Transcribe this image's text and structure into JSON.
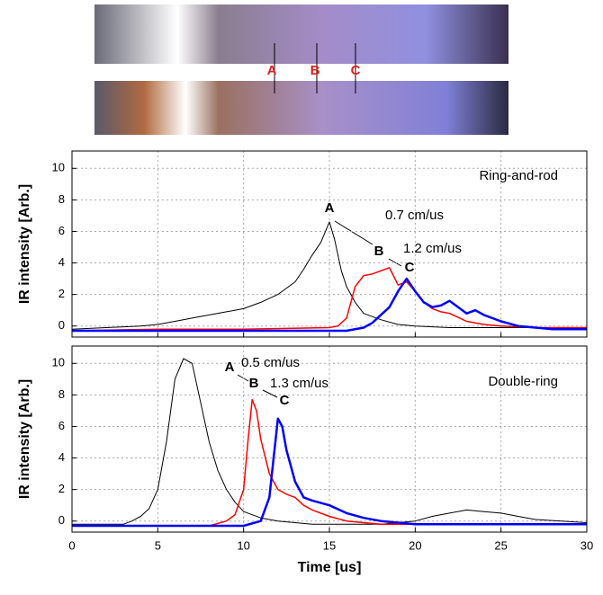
{
  "photos": {
    "labels": [
      "A",
      "B",
      "C"
    ]
  },
  "chart_data": [
    {
      "type": "line",
      "ylabel": "IR intensity [Arb.]",
      "xlim": [
        0,
        30
      ],
      "ylim": [
        -0.7,
        11.1
      ],
      "yticks": [
        0,
        2,
        4,
        6,
        8,
        10
      ],
      "xticks": [
        0,
        5,
        10,
        15,
        20,
        25,
        30
      ],
      "grid": true,
      "annotations": [
        "Ring-and-rod",
        "A",
        "0.7 cm/us",
        "B",
        "1.2 cm/us",
        "C"
      ],
      "series": [
        {
          "color": "#000000",
          "x": [
            0,
            2,
            4,
            5,
            6,
            7,
            8,
            9,
            10,
            11,
            12,
            13,
            13.5,
            14,
            14.5,
            15,
            15.3,
            15.7,
            16,
            16.5,
            17,
            18,
            19,
            20,
            22,
            25,
            28,
            30
          ],
          "values": [
            -0.2,
            -0.1,
            0,
            0.1,
            0.3,
            0.5,
            0.7,
            0.9,
            1.1,
            1.5,
            2,
            2.8,
            3.6,
            4.5,
            5.3,
            6.6,
            5.5,
            3.5,
            2.5,
            1.5,
            0.8,
            0.4,
            0.1,
            0,
            -0.1,
            -0.1,
            -0.1,
            -0.1
          ]
        },
        {
          "color": "#ff0000",
          "x": [
            0,
            5,
            10,
            15,
            15.5,
            16,
            16.5,
            17,
            17.5,
            18,
            18.5,
            19,
            19.5,
            20,
            20.5,
            21,
            21.5,
            22,
            23,
            24,
            25,
            27,
            30
          ],
          "values": [
            -0.3,
            -0.2,
            -0.2,
            -0.1,
            0,
            0.5,
            2.5,
            3.2,
            3.3,
            3.5,
            3.7,
            2.6,
            2.8,
            2.2,
            1.5,
            1.1,
            0.9,
            0.8,
            0.3,
            0.1,
            0,
            -0.1,
            -0.1
          ]
        },
        {
          "color": "#0000ff",
          "x": [
            0,
            5,
            10,
            15,
            16,
            17,
            17.5,
            18,
            18.5,
            19,
            19.5,
            20,
            20.5,
            21,
            21.5,
            22,
            22.5,
            23,
            23.5,
            24,
            25,
            26,
            28,
            30
          ],
          "values": [
            -0.3,
            -0.3,
            -0.3,
            -0.3,
            -0.3,
            -0.1,
            0.2,
            0.7,
            1.2,
            2.2,
            3,
            2.2,
            1.5,
            1.2,
            1.3,
            1.6,
            1.2,
            0.8,
            1,
            0.7,
            0.3,
            0,
            -0.2,
            -0.2
          ]
        }
      ]
    },
    {
      "type": "line",
      "ylabel": "IR intensity [Arb.]",
      "xlabel": "Time [us]",
      "xlim": [
        0,
        30
      ],
      "ylim": [
        -0.7,
        11.1
      ],
      "yticks": [
        0,
        2,
        4,
        6,
        8,
        10
      ],
      "xticks": [
        0,
        5,
        10,
        15,
        20,
        25,
        30
      ],
      "grid": true,
      "annotations": [
        "A",
        "0.5 cm/us",
        "B",
        "1.3 cm/us",
        "C",
        "Double-ring"
      ],
      "series": [
        {
          "color": "#000000",
          "x": [
            0,
            3,
            3.5,
            4,
            4.5,
            5,
            5.5,
            6,
            6.5,
            7,
            7.5,
            8,
            8.5,
            9,
            9.5,
            10,
            11,
            12,
            14,
            18,
            20,
            21,
            22,
            23,
            24,
            25,
            26,
            27,
            30
          ],
          "values": [
            -0.2,
            -0.2,
            0,
            0.3,
            0.8,
            2,
            5,
            9,
            10.3,
            10,
            7.5,
            5,
            3.2,
            2,
            1.2,
            0.6,
            0.2,
            0,
            -0.2,
            -0.2,
            0,
            0.3,
            0.5,
            0.7,
            0.6,
            0.5,
            0.3,
            0.1,
            -0.1
          ]
        },
        {
          "color": "#ff0000",
          "x": [
            0,
            5,
            8,
            9,
            9.5,
            10,
            10.25,
            10.5,
            10.75,
            11,
            11.5,
            12,
            12.5,
            13,
            13.5,
            14,
            15,
            16,
            18,
            30
          ],
          "values": [
            -0.3,
            -0.3,
            -0.3,
            0,
            0.4,
            2,
            5,
            7.7,
            7,
            5.2,
            3,
            2,
            1.7,
            1.5,
            1,
            0.7,
            0.3,
            0,
            -0.2,
            -0.2
          ]
        },
        {
          "color": "#0000ff",
          "x": [
            0,
            5,
            10,
            11,
            11.5,
            11.75,
            12,
            12.25,
            12.5,
            13,
            13.5,
            14,
            15,
            16,
            17,
            18,
            20,
            30
          ],
          "values": [
            -0.3,
            -0.3,
            -0.3,
            0,
            1.5,
            4,
            6.5,
            6,
            4.5,
            2.5,
            1.5,
            1.3,
            1,
            0.5,
            0.2,
            0,
            -0.2,
            -0.2
          ]
        }
      ]
    }
  ]
}
